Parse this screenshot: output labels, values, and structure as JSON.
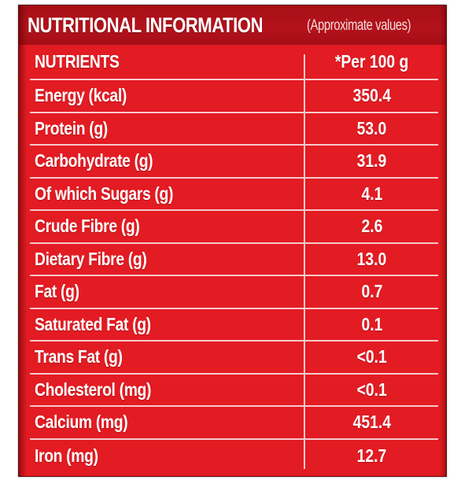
{
  "title": {
    "main": "NUTRITIONAL INFORMATION",
    "sub": "(Approximate values)"
  },
  "table": {
    "headers": {
      "nutrients": "NUTRIENTS",
      "per100": "*Per 100 g"
    },
    "rows": [
      {
        "name": "Energy (kcal)",
        "value": "350.4"
      },
      {
        "name": "Protein (g)",
        "value": "53.0"
      },
      {
        "name": "Carbohydrate (g)",
        "value": "31.9"
      },
      {
        "name": "Of which Sugars (g)",
        "value": "4.1"
      },
      {
        "name": "Crude Fibre (g)",
        "value": "2.6"
      },
      {
        "name": "Dietary Fibre (g)",
        "value": "13.0"
      },
      {
        "name": "Fat (g)",
        "value": "0.7"
      },
      {
        "name": "Saturated Fat (g)",
        "value": "0.1"
      },
      {
        "name": "Trans Fat (g)",
        "value": "<0.1"
      },
      {
        "name": "Cholesterol (mg)",
        "value": "<0.1"
      },
      {
        "name": "Calcium (mg)",
        "value": "451.4"
      },
      {
        "name": "Iron (mg)",
        "value": "12.7"
      }
    ]
  },
  "colors": {
    "panel_red": "#e31b23",
    "title_band_red": "#b3121b",
    "divider": "#f4c9cb",
    "text": "#ffffff"
  }
}
